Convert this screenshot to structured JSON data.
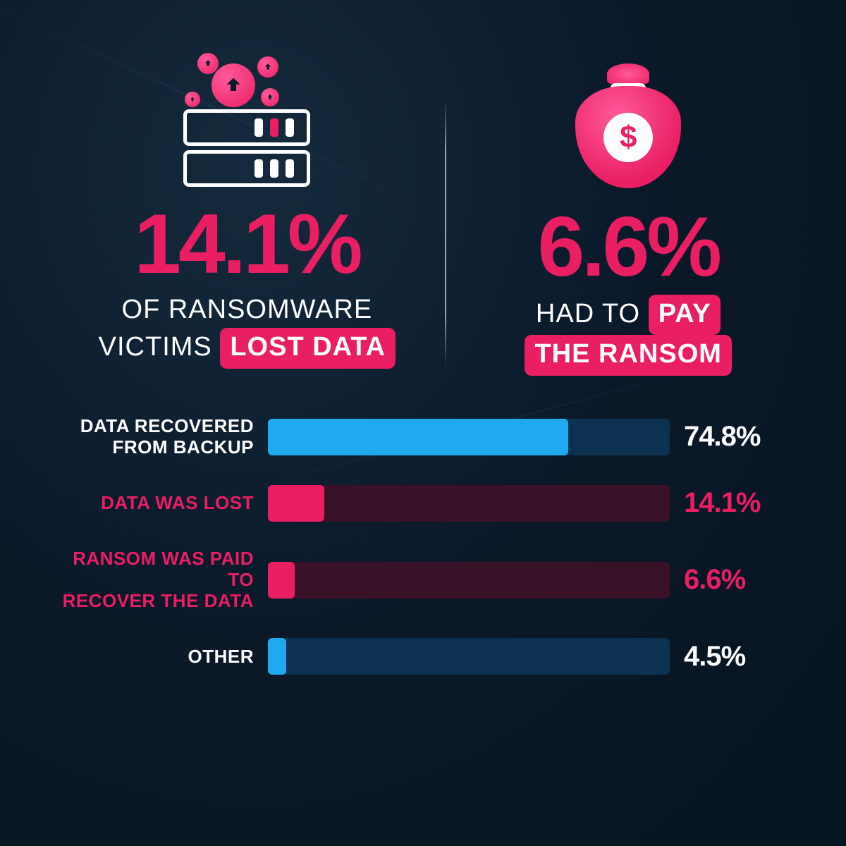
{
  "colors": {
    "pink": "#e91e63",
    "pink_light": "#ff5a9a",
    "blue": "#1faaf0",
    "white": "#ffffff",
    "bg": "#0a1828",
    "track_blue": "#0d3150",
    "track_pink": "#3a1228"
  },
  "left_stat": {
    "percent": "14.1%",
    "line1": "OF RANSOMWARE",
    "line2_pre": "VICTIMS",
    "line2_hl": "LOST DATA"
  },
  "right_stat": {
    "percent": "6.6%",
    "line1_pre": "HAD TO",
    "line1_hl": "PAY",
    "line2_hl": "THE RANSOM"
  },
  "chart": {
    "max": 100,
    "bars": [
      {
        "label": "DATA RECOVERED FROM BACKUP",
        "value": 74.8,
        "display": "74.8%",
        "label_color": "#ffffff",
        "fill_color": "#1faaf0",
        "track_color": "#0d3150",
        "value_color": "#ffffff"
      },
      {
        "label": "DATA WAS LOST",
        "value": 14.1,
        "display": "14.1%",
        "label_color": "#e91e63",
        "fill_color": "#e91e63",
        "track_color": "#3a1228",
        "value_color": "#e91e63"
      },
      {
        "label": "RANSOM WAS PAID TO RECOVER THE DATA",
        "value": 6.6,
        "display": "6.6%",
        "label_color": "#e91e63",
        "fill_color": "#e91e63",
        "track_color": "#3a1228",
        "value_color": "#e91e63"
      },
      {
        "label": "OTHER",
        "value": 4.5,
        "display": "4.5%",
        "label_color": "#ffffff",
        "fill_color": "#1faaf0",
        "track_color": "#0d3150",
        "value_color": "#ffffff"
      }
    ]
  }
}
